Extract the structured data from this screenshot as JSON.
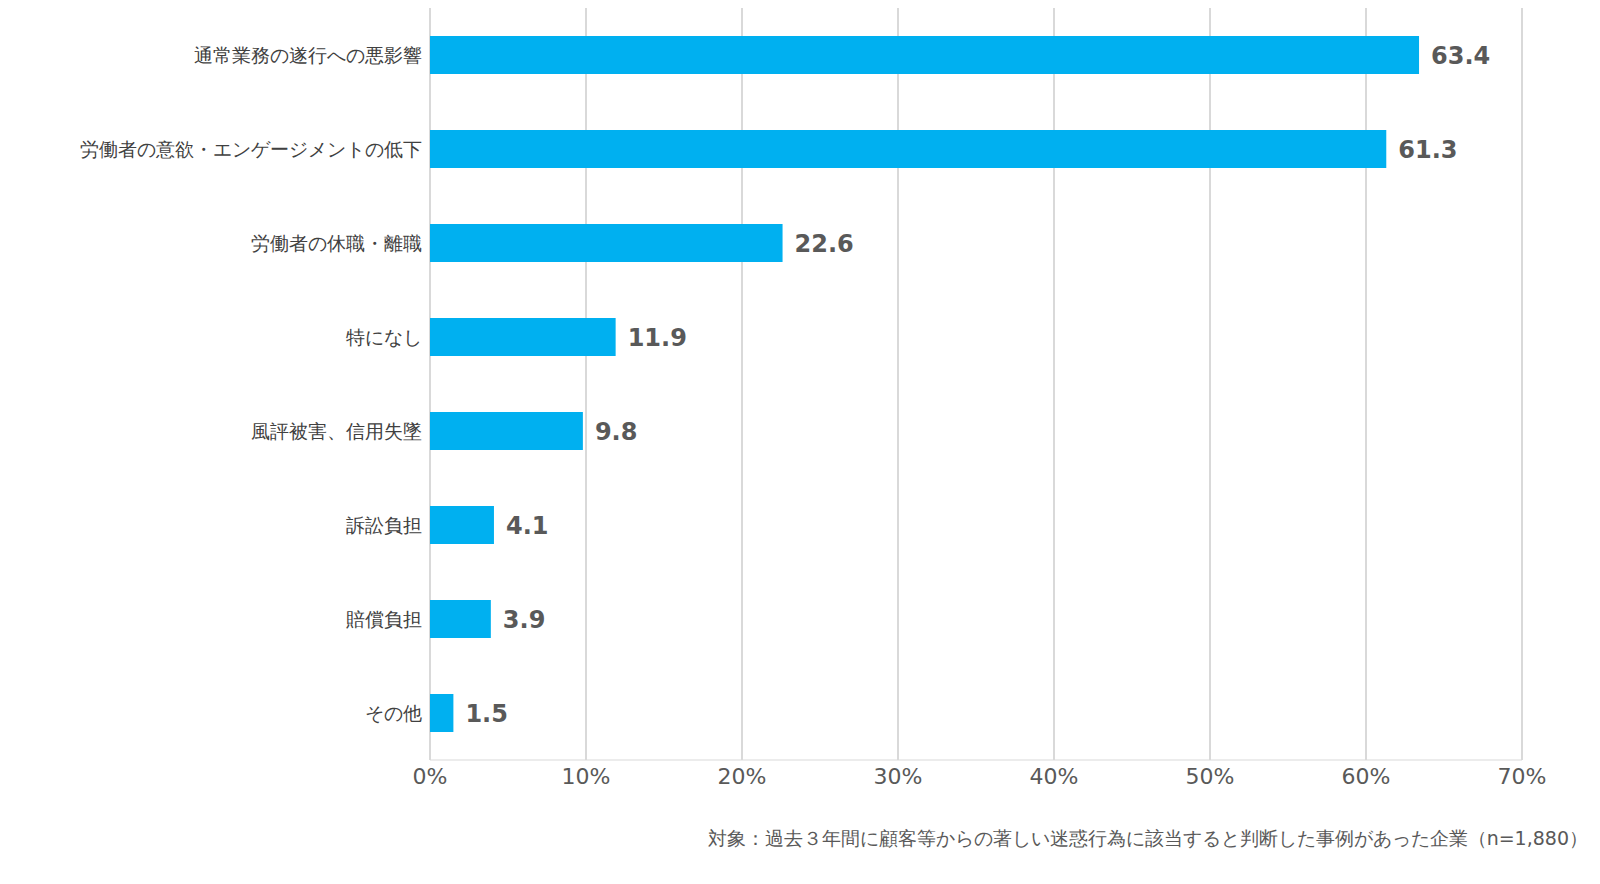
{
  "chart_data": {
    "type": "bar",
    "orientation": "horizontal",
    "categories": [
      "通常業務の遂行への悪影響",
      "労働者の意欲・エンゲージメントの低下",
      "労働者の休職・離職",
      "特になし",
      "風評被害、信用失墜",
      "訴訟負担",
      "賠償負担",
      "その他"
    ],
    "values": [
      63.4,
      61.3,
      22.6,
      11.9,
      9.8,
      4.1,
      3.9,
      1.5
    ],
    "color": "#00b0f0",
    "xlim": [
      0,
      70
    ],
    "xticks": [
      {
        "value": 0,
        "label": "0%"
      },
      {
        "value": 10,
        "label": "10%"
      },
      {
        "value": 20,
        "label": "20%"
      },
      {
        "value": 30,
        "label": "30%"
      },
      {
        "value": 40,
        "label": "40%"
      },
      {
        "value": 50,
        "label": "50%"
      },
      {
        "value": 60,
        "label": "60%"
      },
      {
        "value": 70,
        "label": "70%"
      }
    ],
    "grid": true,
    "data_labels": true,
    "annotation": "対象：過去３年間に顧客等からの著しい迷惑行為に該当すると判断した事例があった企業（n=1,880）"
  }
}
